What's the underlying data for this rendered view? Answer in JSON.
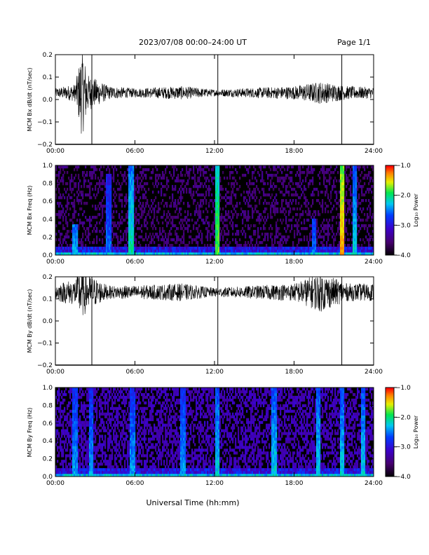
{
  "header": {
    "date_range": "2023/07/08  00:00–24:00 UT",
    "page": "Page 1/1"
  },
  "xaxis": {
    "title": "Universal Time (hh:mm)",
    "ticks": [
      "00:00",
      "06:00",
      "12:00",
      "18:00",
      "24:00"
    ]
  },
  "colorbar": {
    "label": "Log₁₀ Power",
    "ticks": [
      "−1.0",
      "−2.0",
      "−3.0",
      "−4.0"
    ]
  },
  "chart_data": [
    {
      "type": "line",
      "ylabel": "MCM Bx dB/dt (nT/sec)",
      "xlim": [
        0,
        24
      ],
      "ylim": [
        -0.2,
        0.2
      ],
      "yticks": [
        "0.2",
        "0.1",
        "0.0",
        "−0.1",
        "−0.2"
      ],
      "baseline": 0.03,
      "noise_envelope": [
        {
          "t": 0.0,
          "amp": 0.02
        },
        {
          "t": 1.5,
          "amp": 0.04
        },
        {
          "t": 2.0,
          "amp": 0.2
        },
        {
          "t": 2.5,
          "amp": 0.08
        },
        {
          "t": 4.0,
          "amp": 0.03
        },
        {
          "t": 6.0,
          "amp": 0.02
        },
        {
          "t": 9.5,
          "amp": 0.03
        },
        {
          "t": 12.0,
          "amp": 0.015
        },
        {
          "t": 18.0,
          "amp": 0.03
        },
        {
          "t": 20.0,
          "amp": 0.05
        },
        {
          "t": 22.0,
          "amp": 0.03
        },
        {
          "t": 24.0,
          "amp": 0.025
        }
      ],
      "spikes": [
        {
          "t": 2.75,
          "range": [
            -0.2,
            0.2
          ]
        },
        {
          "t": 12.25,
          "range": [
            -0.2,
            0.2
          ]
        },
        {
          "t": 21.6,
          "range": [
            -0.2,
            0.2
          ]
        }
      ]
    },
    {
      "type": "heatmap",
      "ylabel": "MCM Bx Freq (Hz)",
      "xlim": [
        0,
        24
      ],
      "ylim": [
        0,
        1.0
      ],
      "yticks": [
        "1.0",
        "0.8",
        "0.6",
        "0.4",
        "0.2",
        "0.0"
      ],
      "zlim": [
        -4.0,
        -1.0
      ],
      "activity_bands": [
        {
          "t": 1.5,
          "f_max": 0.35,
          "level": 0.55
        },
        {
          "t": 4.0,
          "f_max": 0.9,
          "level": 0.5
        },
        {
          "t": 5.7,
          "f_max": 1.0,
          "level": 0.65
        },
        {
          "t": 12.2,
          "f_max": 1.0,
          "level": 0.75
        },
        {
          "t": 19.5,
          "f_max": 0.4,
          "level": 0.5
        },
        {
          "t": 21.6,
          "f_max": 1.0,
          "level": 0.9
        },
        {
          "t": 22.6,
          "f_max": 1.0,
          "level": 0.6
        }
      ]
    },
    {
      "type": "line",
      "ylabel": "MCM By dB/dt (nT/sec)",
      "xlim": [
        0,
        24
      ],
      "ylim": [
        -0.2,
        0.2
      ],
      "yticks": [
        "0.2",
        "0.1",
        "0.0",
        "−0.1",
        "−0.2"
      ],
      "baseline": 0.13,
      "noise_envelope": [
        {
          "t": 0.0,
          "amp": 0.04
        },
        {
          "t": 1.5,
          "amp": 0.06
        },
        {
          "t": 2.0,
          "amp": 0.12
        },
        {
          "t": 2.5,
          "amp": 0.08
        },
        {
          "t": 4.0,
          "amp": 0.03
        },
        {
          "t": 6.0,
          "amp": 0.03
        },
        {
          "t": 9.5,
          "amp": 0.04
        },
        {
          "t": 12.0,
          "amp": 0.02
        },
        {
          "t": 18.0,
          "amp": 0.04
        },
        {
          "t": 20.0,
          "amp": 0.09
        },
        {
          "t": 22.0,
          "amp": 0.04
        },
        {
          "t": 24.0,
          "amp": 0.04
        }
      ],
      "spikes": [
        {
          "t": 2.75,
          "range": [
            -0.2,
            0.2
          ]
        },
        {
          "t": 12.25,
          "range": [
            -0.2,
            0.2
          ]
        },
        {
          "t": 21.6,
          "range": [
            -0.2,
            0.2
          ]
        }
      ]
    },
    {
      "type": "heatmap",
      "ylabel": "MCM By Freq (Hz)",
      "xlim": [
        0,
        24
      ],
      "ylim": [
        0,
        1.0
      ],
      "yticks": [
        "1.0",
        "0.8",
        "0.6",
        "0.4",
        "0.2",
        "0.0"
      ],
      "zlim": [
        -4.0,
        -1.0
      ],
      "activity_bands": [
        {
          "t": 1.5,
          "f_max": 1.0,
          "level": 0.55
        },
        {
          "t": 2.7,
          "f_max": 1.0,
          "level": 0.55
        },
        {
          "t": 5.8,
          "f_max": 1.0,
          "level": 0.55
        },
        {
          "t": 9.6,
          "f_max": 1.0,
          "level": 0.55
        },
        {
          "t": 12.2,
          "f_max": 1.0,
          "level": 0.6
        },
        {
          "t": 16.5,
          "f_max": 1.0,
          "level": 0.6
        },
        {
          "t": 19.8,
          "f_max": 1.0,
          "level": 0.6
        },
        {
          "t": 21.6,
          "f_max": 1.0,
          "level": 0.6
        },
        {
          "t": 23.2,
          "f_max": 1.0,
          "level": 0.6
        }
      ]
    }
  ]
}
